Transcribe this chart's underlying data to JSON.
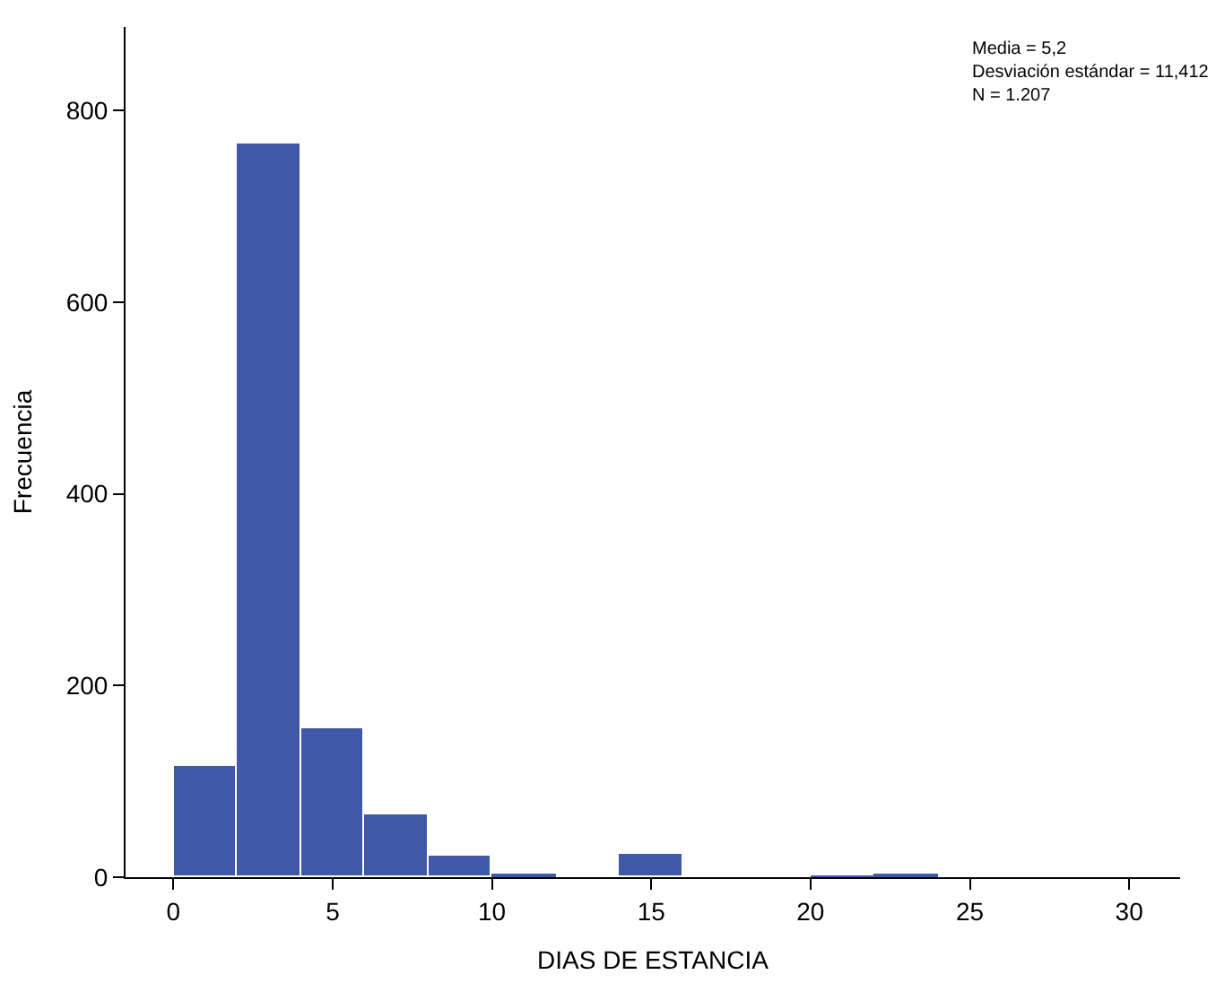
{
  "chart_data": {
    "type": "histogram",
    "xlabel": "DIAS DE ESTANCIA",
    "ylabel": "Frecuencia",
    "bins": [
      0,
      2,
      4,
      6,
      8,
      10,
      12,
      14,
      16,
      18,
      20,
      22,
      24,
      26,
      28,
      30
    ],
    "values": [
      116,
      765,
      155,
      66,
      22,
      3,
      0,
      24,
      0,
      0,
      1,
      2,
      0,
      0,
      0
    ],
    "color": "#3f58a8",
    "xlim": [
      -1.5,
      31.6
    ],
    "xticks": [
      0,
      5,
      10,
      15,
      20,
      25,
      30
    ],
    "ylim": [
      0,
      887
    ],
    "yticks": [
      0,
      200,
      400,
      600,
      800
    ],
    "annotations": [
      "Media = 5,2",
      "Desviación estándar = 11,412",
      "N = 1.207"
    ]
  }
}
